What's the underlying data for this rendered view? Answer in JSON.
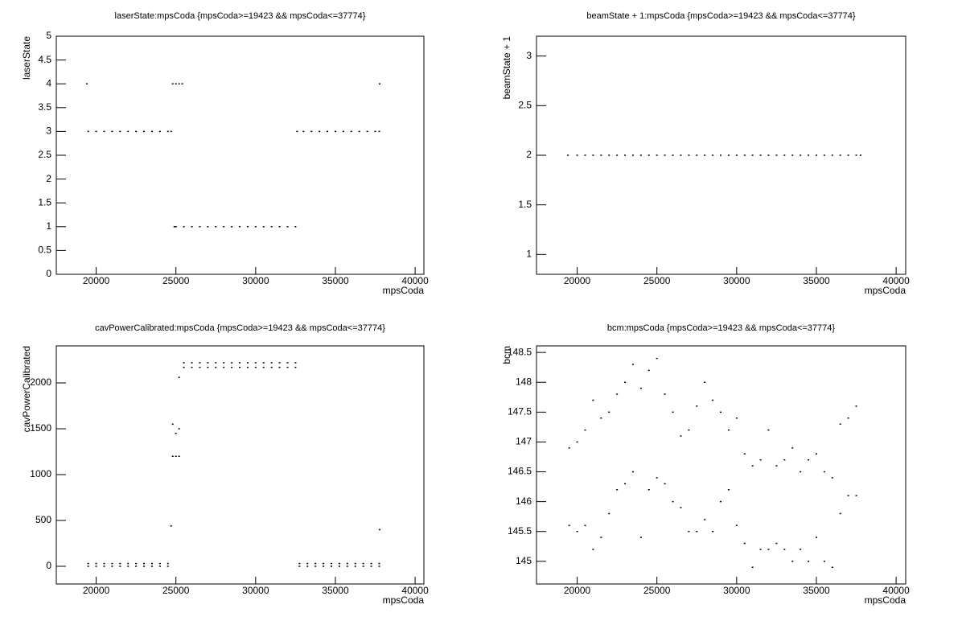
{
  "chart_data": [
    {
      "type": "scatter",
      "title": "laserState:mpsCoda {mpsCoda>=19423 && mpsCoda<=37774}",
      "x_label": "mpsCoda",
      "y_label": "laserState",
      "color": "#000000",
      "xlim": [
        17500,
        40550
      ],
      "ylim": [
        0,
        5
      ],
      "xticks": [
        20000,
        25000,
        30000,
        35000,
        40000
      ],
      "yticks": [
        0,
        0.5,
        1,
        1.5,
        2,
        2.5,
        3,
        3.5,
        4,
        4.5,
        5
      ],
      "x": [
        19423,
        19500,
        20000,
        20500,
        21000,
        21500,
        22000,
        22500,
        23000,
        23500,
        24000,
        24500,
        24700,
        24800,
        25000,
        25200,
        25400,
        24900,
        25000,
        25500,
        26000,
        26500,
        27000,
        27500,
        28000,
        28500,
        29000,
        29500,
        30000,
        30500,
        31000,
        31500,
        32000,
        32500,
        32600,
        33000,
        33500,
        34000,
        34500,
        35000,
        35500,
        36000,
        36500,
        37000,
        37500,
        37750,
        37774
      ],
      "values": [
        4,
        3,
        3,
        3,
        3,
        3,
        3,
        3,
        3,
        3,
        3,
        3,
        3,
        4,
        4,
        4,
        4,
        1,
        1,
        1,
        1,
        1,
        1,
        1,
        1,
        1,
        1,
        1,
        1,
        1,
        1,
        1,
        1,
        1,
        3,
        3,
        3,
        3,
        3,
        3,
        3,
        3,
        3,
        3,
        3,
        3,
        4
      ]
    },
    {
      "type": "scatter",
      "title": "beamState + 1:mpsCoda {mpsCoda>=19423 && mpsCoda<=37774}",
      "x_label": "mpsCoda",
      "y_label": "beamState + 1",
      "color": "#000000",
      "xlim": [
        17450,
        40600
      ],
      "ylim": [
        0.8,
        3.2
      ],
      "xticks": [
        20000,
        25000,
        30000,
        35000,
        40000
      ],
      "yticks": [
        1,
        1.5,
        2,
        2.5,
        3
      ],
      "x": [
        19423,
        20000,
        20500,
        21000,
        21500,
        22000,
        22500,
        23000,
        23500,
        24000,
        24500,
        25000,
        25500,
        26000,
        26500,
        27000,
        27500,
        28000,
        28500,
        29000,
        29500,
        30000,
        30500,
        31000,
        31500,
        32000,
        32500,
        33000,
        33500,
        34000,
        34500,
        35000,
        35500,
        36000,
        36500,
        37000,
        37500,
        37774
      ],
      "values": [
        2,
        2,
        2,
        2,
        2,
        2,
        2,
        2,
        2,
        2,
        2,
        2,
        2,
        2,
        2,
        2,
        2,
        2,
        2,
        2,
        2,
        2,
        2,
        2,
        2,
        2,
        2,
        2,
        2,
        2,
        2,
        2,
        2,
        2,
        2,
        2,
        2,
        2
      ]
    },
    {
      "type": "scatter",
      "title": "cavPowerCalibrated:mpsCoda {mpsCoda>=19423 && mpsCoda<=37774}",
      "x_label": "mpsCoda",
      "y_label": "cavPowerCalibrated",
      "color": "#000000",
      "xlim": [
        17500,
        40550
      ],
      "ylim": [
        -193,
        2404
      ],
      "xticks": [
        20000,
        25000,
        30000,
        35000,
        40000
      ],
      "yticks": [
        0,
        500,
        1000,
        1500,
        2000
      ],
      "x": [
        19500,
        19500,
        20000,
        20000,
        20500,
        20500,
        21000,
        21000,
        21500,
        21500,
        22000,
        22000,
        22500,
        22500,
        23000,
        23000,
        23500,
        23500,
        24000,
        24000,
        24500,
        24500,
        24700,
        24800,
        24800,
        25000,
        25000,
        25200,
        25200,
        25200,
        25500,
        25500,
        26000,
        26000,
        26500,
        26500,
        27000,
        27000,
        27500,
        27500,
        28000,
        28000,
        28500,
        28500,
        29000,
        29000,
        29500,
        29500,
        30000,
        30000,
        30500,
        30500,
        31000,
        31000,
        31500,
        31500,
        32000,
        32000,
        32500,
        32500,
        32750,
        32750,
        33250,
        33250,
        33750,
        33750,
        34250,
        34250,
        34750,
        34750,
        35250,
        35250,
        35750,
        35750,
        36250,
        36250,
        36750,
        36750,
        37250,
        37250,
        37750,
        37750,
        37774
      ],
      "values": [
        0,
        30,
        0,
        30,
        0,
        30,
        0,
        30,
        0,
        30,
        0,
        30,
        0,
        30,
        0,
        30,
        0,
        30,
        0,
        30,
        0,
        30,
        440,
        1200,
        1550,
        1200,
        1450,
        1200,
        1500,
        2060,
        2170,
        2220,
        2170,
        2220,
        2170,
        2220,
        2170,
        2220,
        2170,
        2220,
        2170,
        2220,
        2170,
        2220,
        2170,
        2220,
        2170,
        2220,
        2170,
        2220,
        2170,
        2220,
        2170,
        2220,
        2170,
        2220,
        2170,
        2220,
        2170,
        2220,
        0,
        30,
        0,
        30,
        0,
        30,
        0,
        30,
        0,
        30,
        0,
        30,
        0,
        30,
        0,
        30,
        0,
        30,
        0,
        30,
        0,
        30,
        400
      ]
    },
    {
      "type": "scatter",
      "title": "bcm:mpsCoda {mpsCoda>=19423 && mpsCoda<=37774}",
      "x_label": "mpsCoda",
      "y_label": "bcm",
      "color": "#000000",
      "xlim": [
        17450,
        40600
      ],
      "ylim": [
        144.62,
        148.61
      ],
      "xticks": [
        20000,
        25000,
        30000,
        35000,
        40000
      ],
      "yticks": [
        145,
        145.5,
        146,
        146.5,
        147,
        147.5,
        148,
        148.5
      ],
      "x": [
        19500,
        19500,
        20000,
        20000,
        20500,
        20500,
        21000,
        21000,
        21500,
        21500,
        22000,
        22000,
        22500,
        22500,
        23000,
        23000,
        23500,
        23500,
        24000,
        24000,
        24500,
        24500,
        25000,
        25000,
        25500,
        25500,
        26000,
        26000,
        26500,
        26500,
        27000,
        27000,
        27500,
        27500,
        28000,
        28000,
        28500,
        28500,
        29000,
        29000,
        29500,
        29500,
        30000,
        30000,
        30500,
        30500,
        31000,
        31000,
        31500,
        31500,
        32000,
        32000,
        32500,
        32500,
        33000,
        33000,
        33500,
        33500,
        34000,
        34000,
        34500,
        34500,
        35000,
        35000,
        35500,
        35500,
        36000,
        36000,
        36500,
        36500,
        37000,
        37000,
        37500,
        37500
      ],
      "values": [
        145.6,
        146.9,
        145.5,
        147.0,
        145.6,
        147.2,
        145.2,
        147.7,
        145.4,
        147.4,
        145.8,
        147.5,
        146.2,
        147.8,
        146.3,
        148.0,
        146.5,
        148.3,
        145.4,
        147.9,
        146.2,
        148.2,
        146.4,
        148.4,
        146.3,
        147.8,
        146.0,
        147.5,
        145.9,
        147.1,
        145.5,
        147.2,
        145.5,
        147.6,
        145.7,
        148.0,
        145.5,
        147.7,
        146.0,
        147.5,
        146.2,
        147.2,
        145.6,
        147.4,
        145.3,
        146.8,
        144.9,
        146.6,
        145.2,
        146.7,
        145.2,
        147.2,
        145.3,
        146.6,
        145.2,
        146.7,
        145.0,
        146.9,
        145.2,
        146.5,
        145.0,
        146.7,
        145.4,
        146.8,
        145.0,
        146.5,
        144.9,
        146.4,
        145.8,
        147.3,
        146.1,
        147.4,
        146.1,
        147.6
      ]
    }
  ]
}
